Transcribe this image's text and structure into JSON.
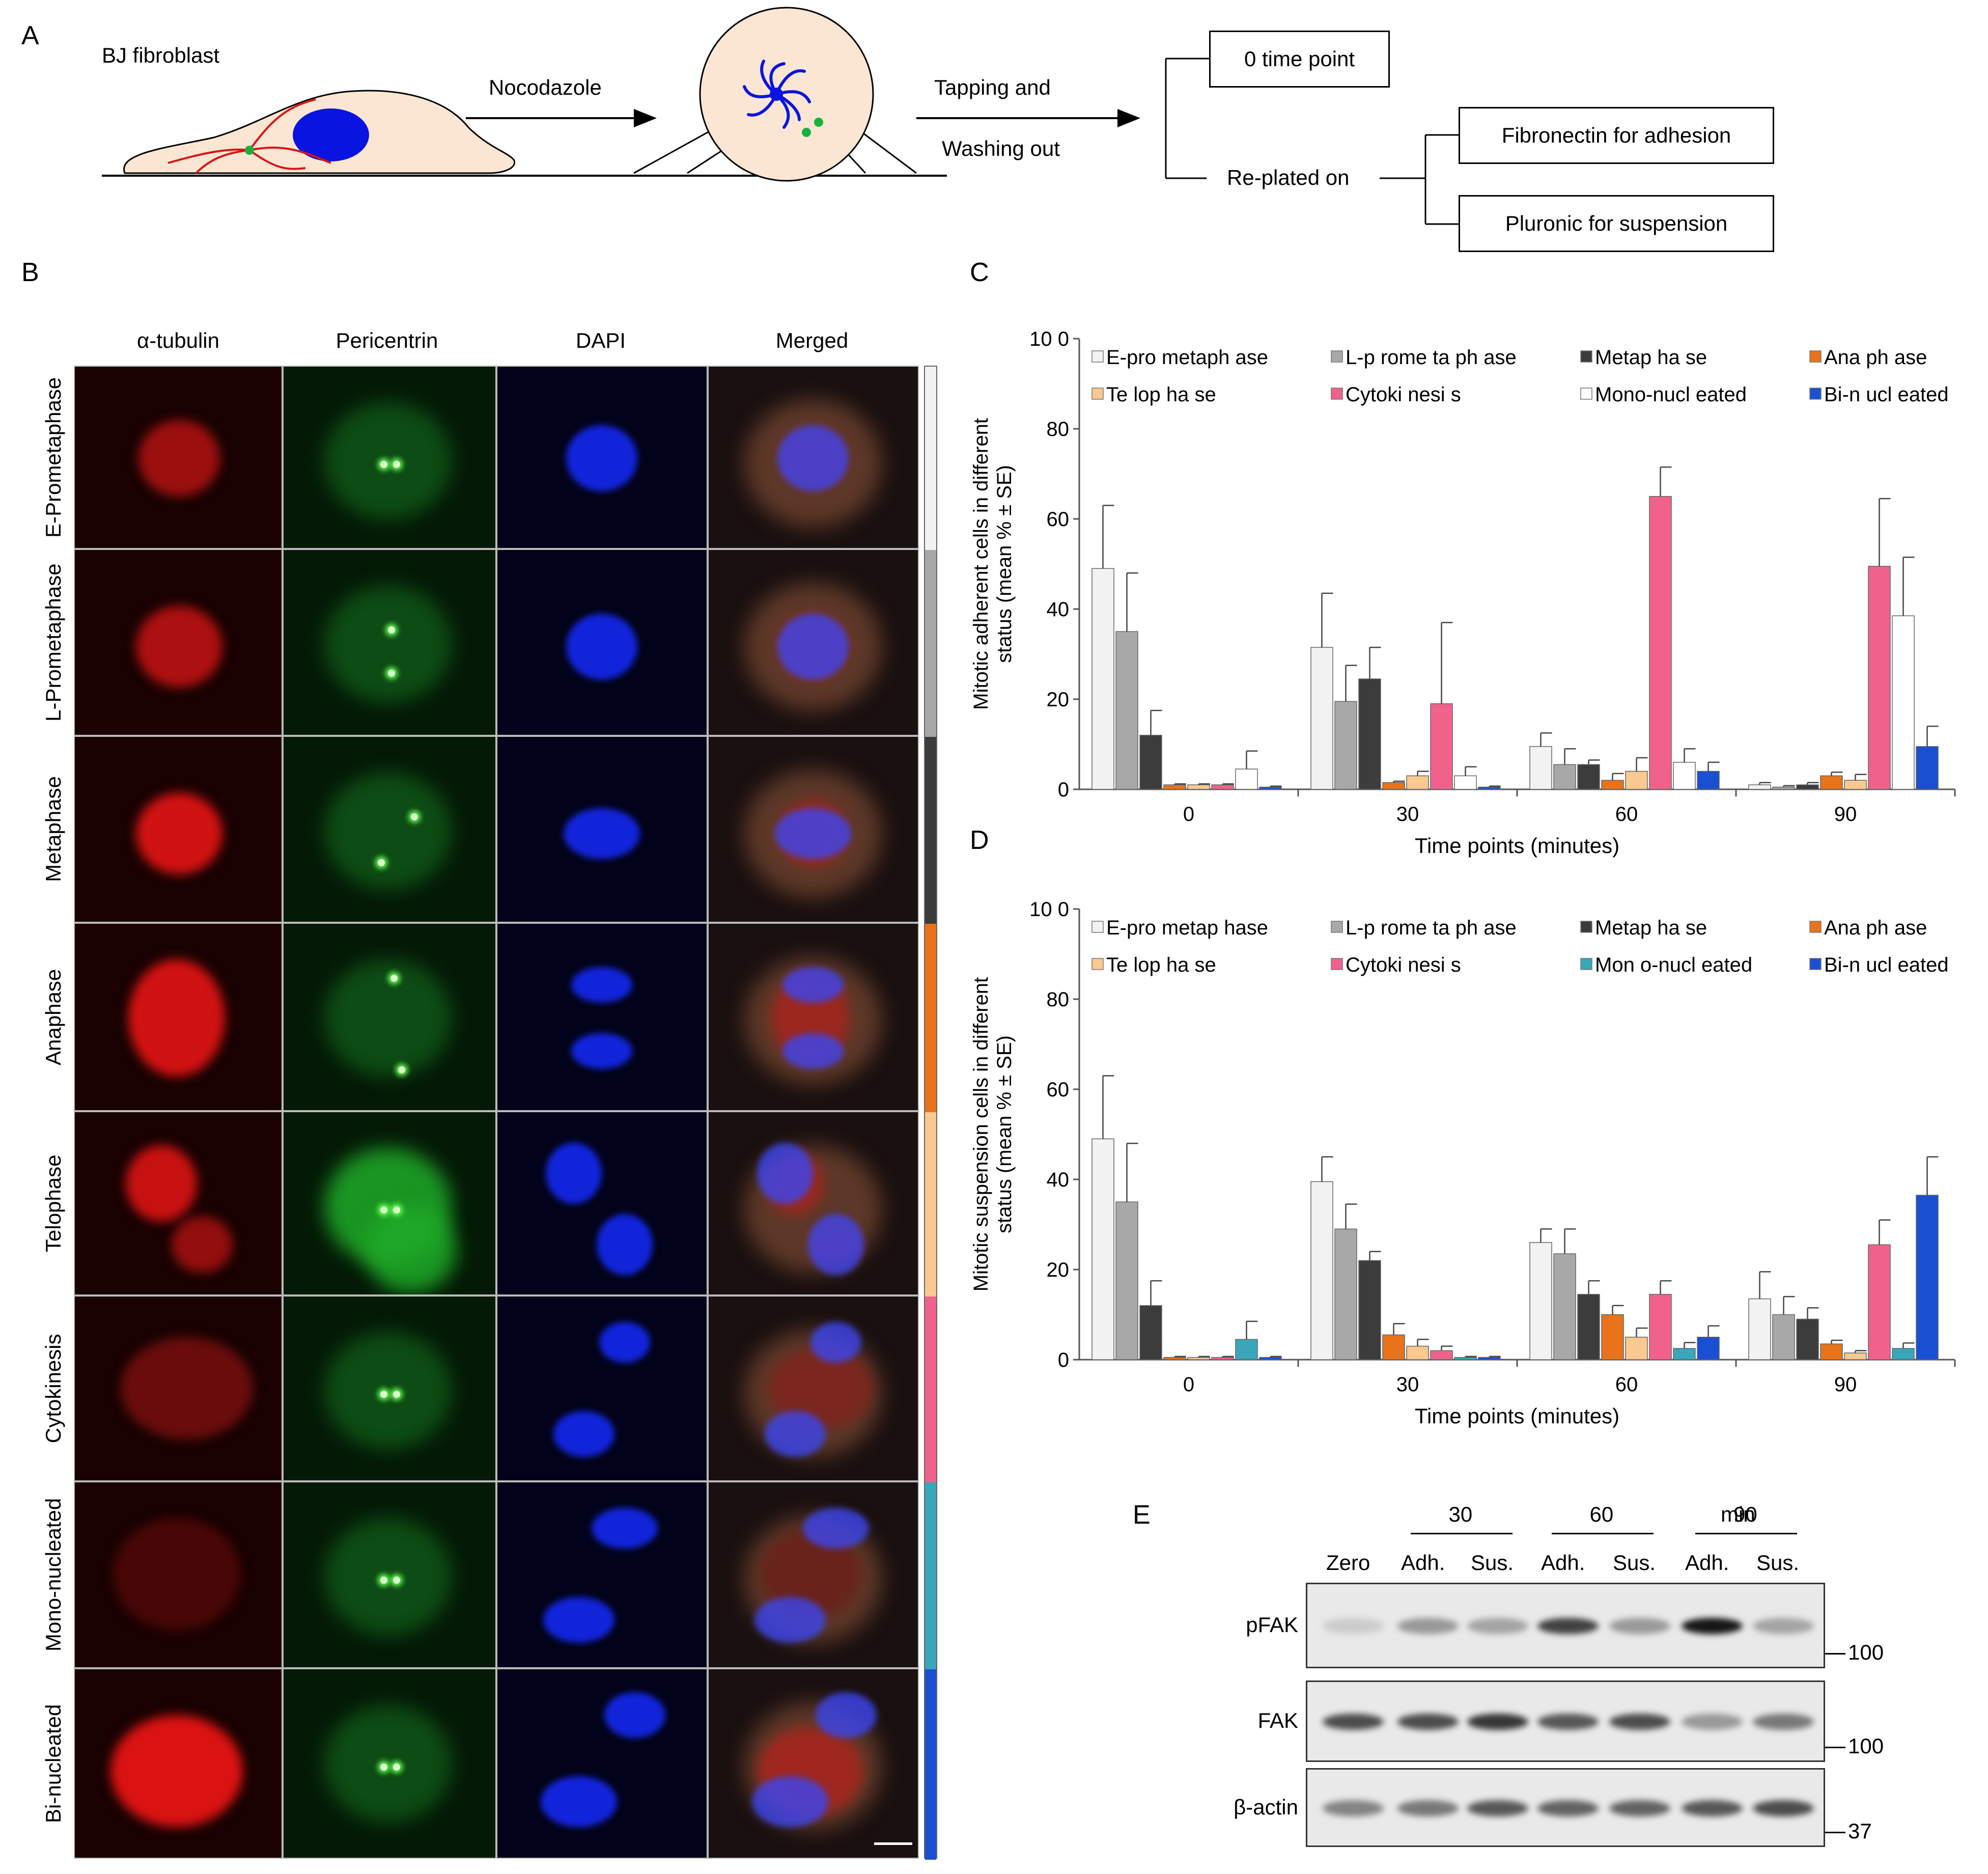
{
  "panelA": {
    "label": "A",
    "cell_label": "BJ fibroblast",
    "drug_label": "Nocodazole",
    "action_line1": "Tapping and",
    "action_line2": "Washing out",
    "zero_box": "0 time point",
    "replated": "Re-plated on",
    "fibronectin_box": "Fibronectin for adhesion",
    "pluronic_box": "Pluronic for suspension"
  },
  "panelB": {
    "label": "B",
    "columns": [
      "α-tubulin",
      "Pericentrin",
      "DAPI",
      "Merged"
    ],
    "rows": [
      "E-Prometaphase",
      "L-Prometaphase",
      "Metaphase",
      "Anaphase",
      "Telophase",
      "Cytokinesis",
      "Mono-nucleated",
      "Bi-nucleated"
    ],
    "row_colors": [
      "#f2f2f2",
      "#a8a8a8",
      "#3c3c3c",
      "#e8731a",
      "#f9c98f",
      "#f0628c",
      "#3aa6b9",
      "#1a4fd1"
    ]
  },
  "panelC": {
    "label": "C",
    "chart_data": {
      "type": "bar",
      "ylabel": "Mitotic adherent cells in different status (mean % ± SE)",
      "ylabel_line1": "Mitotic adherent cells in different",
      "ylabel_line2": "status (mean % ± SE)",
      "xlabel": "Time points (minutes)",
      "ylim": [
        0,
        100
      ],
      "yticks": [
        "0",
        "20",
        "40",
        "60",
        "80",
        "10 0"
      ],
      "categories": [
        "0",
        "30",
        "60",
        "90"
      ],
      "legend": [
        "E-pro metaph ase",
        "L-p rome ta ph ase",
        "Metap ha se",
        "Ana ph ase",
        "Te lop ha se",
        "Cytoki nesi s",
        "Mono-nucl eated",
        "Bi-n ucl eated"
      ],
      "series": [
        {
          "name": "E-prometaphase",
          "color": "#f2f2f2",
          "values": [
            49,
            31.5,
            9.5,
            1
          ],
          "errors": [
            14,
            12,
            3,
            0.5
          ]
        },
        {
          "name": "L-prometaphase",
          "color": "#a8a8a8",
          "values": [
            35,
            19.5,
            5.5,
            0.5
          ],
          "errors": [
            13,
            8,
            3.5,
            0.3
          ]
        },
        {
          "name": "Metaphase",
          "color": "#3c3c3c",
          "values": [
            12,
            24.5,
            5.5,
            1
          ],
          "errors": [
            5.5,
            7,
            1,
            0.5
          ]
        },
        {
          "name": "Anaphase",
          "color": "#e8731a",
          "values": [
            1,
            1.5,
            2,
            3
          ],
          "errors": [
            0.2,
            0.3,
            1.5,
            0.8
          ]
        },
        {
          "name": "Telophase",
          "color": "#f9c98f",
          "values": [
            1,
            3,
            4,
            2
          ],
          "errors": [
            0.2,
            1,
            3,
            1.3
          ]
        },
        {
          "name": "Cytokinesis",
          "color": "#f0628c",
          "values": [
            1,
            19,
            65,
            49.5
          ],
          "errors": [
            0.2,
            18,
            6.5,
            15
          ]
        },
        {
          "name": "Mono-nucleated",
          "color": "#ffffff",
          "values": [
            4.5,
            3,
            6,
            38.5
          ],
          "errors": [
            4,
            2,
            3,
            13
          ]
        },
        {
          "name": "Bi-nucleated",
          "color": "#1a4fd1",
          "values": [
            0.5,
            0.5,
            4,
            9.5
          ],
          "errors": [
            0.2,
            0.2,
            2,
            4.5
          ]
        }
      ]
    }
  },
  "panelD": {
    "label": "D",
    "chart_data": {
      "type": "bar",
      "ylabel": "Mitotic suspension cells in different status (mean % ± SE)",
      "ylabel_line1": "Mitotic suspension cells in different",
      "ylabel_line2": "status (mean % ± SE)",
      "xlabel": "Time points (minutes)",
      "ylim": [
        0,
        100
      ],
      "yticks": [
        "0",
        "20",
        "40",
        "60",
        "80",
        "10 0"
      ],
      "categories": [
        "0",
        "30",
        "60",
        "90"
      ],
      "legend": [
        "E-pro metap hase",
        "L-p rome ta ph ase",
        "Metap ha se",
        "Ana ph ase",
        "Te lop ha se",
        "Cytoki nesi s",
        "Mon o-nucl eated",
        "Bi-n ucl eated"
      ],
      "series": [
        {
          "name": "E-prometaphase",
          "color": "#f2f2f2",
          "values": [
            49,
            39.5,
            26,
            13.5
          ],
          "errors": [
            14,
            5.5,
            3,
            6
          ]
        },
        {
          "name": "L-prometaphase",
          "color": "#a8a8a8",
          "values": [
            35,
            29,
            23.5,
            10
          ],
          "errors": [
            13,
            5.5,
            5.5,
            4
          ]
        },
        {
          "name": "Metaphase",
          "color": "#3c3c3c",
          "values": [
            12,
            22,
            14.5,
            9
          ],
          "errors": [
            5.5,
            2,
            3,
            2.5
          ]
        },
        {
          "name": "Anaphase",
          "color": "#e8731a",
          "values": [
            0.5,
            5.5,
            10,
            3.5
          ],
          "errors": [
            0.2,
            2.5,
            2,
            0.8
          ]
        },
        {
          "name": "Telophase",
          "color": "#f9c98f",
          "values": [
            0.5,
            3,
            5,
            1.5
          ],
          "errors": [
            0.2,
            1.5,
            2,
            0.5
          ]
        },
        {
          "name": "Cytokinesis",
          "color": "#f0628c",
          "values": [
            0.5,
            2,
            14.5,
            25.5
          ],
          "errors": [
            0.2,
            1,
            3,
            5.5
          ]
        },
        {
          "name": "Mono-nucleated",
          "color": "#3aa6b9",
          "values": [
            4.5,
            0.5,
            2.5,
            2.5
          ],
          "errors": [
            4,
            0.2,
            1.3,
            1.2
          ]
        },
        {
          "name": "Bi-nucleated",
          "color": "#1a4fd1",
          "values": [
            0.5,
            0.5,
            5,
            36.5
          ],
          "errors": [
            0.2,
            0.2,
            2.5,
            8.5
          ]
        }
      ]
    }
  },
  "panelE": {
    "label": "E",
    "times": [
      "30",
      "60",
      "90"
    ],
    "unit": "min",
    "lanes": [
      "Zero",
      "Adh.",
      "Sus.",
      "Adh.",
      "Sus.",
      "Adh.",
      "Sus."
    ],
    "blots": [
      {
        "name": "pFAK",
        "marker": "100",
        "intensities": [
          0.12,
          0.35,
          0.3,
          0.75,
          0.35,
          0.95,
          0.3
        ]
      },
      {
        "name": "FAK",
        "marker": "100",
        "intensities": [
          0.7,
          0.7,
          0.8,
          0.65,
          0.7,
          0.35,
          0.5
        ]
      },
      {
        "name": "β-actin",
        "marker": "37",
        "intensities": [
          0.45,
          0.5,
          0.65,
          0.6,
          0.6,
          0.65,
          0.7
        ]
      }
    ]
  }
}
